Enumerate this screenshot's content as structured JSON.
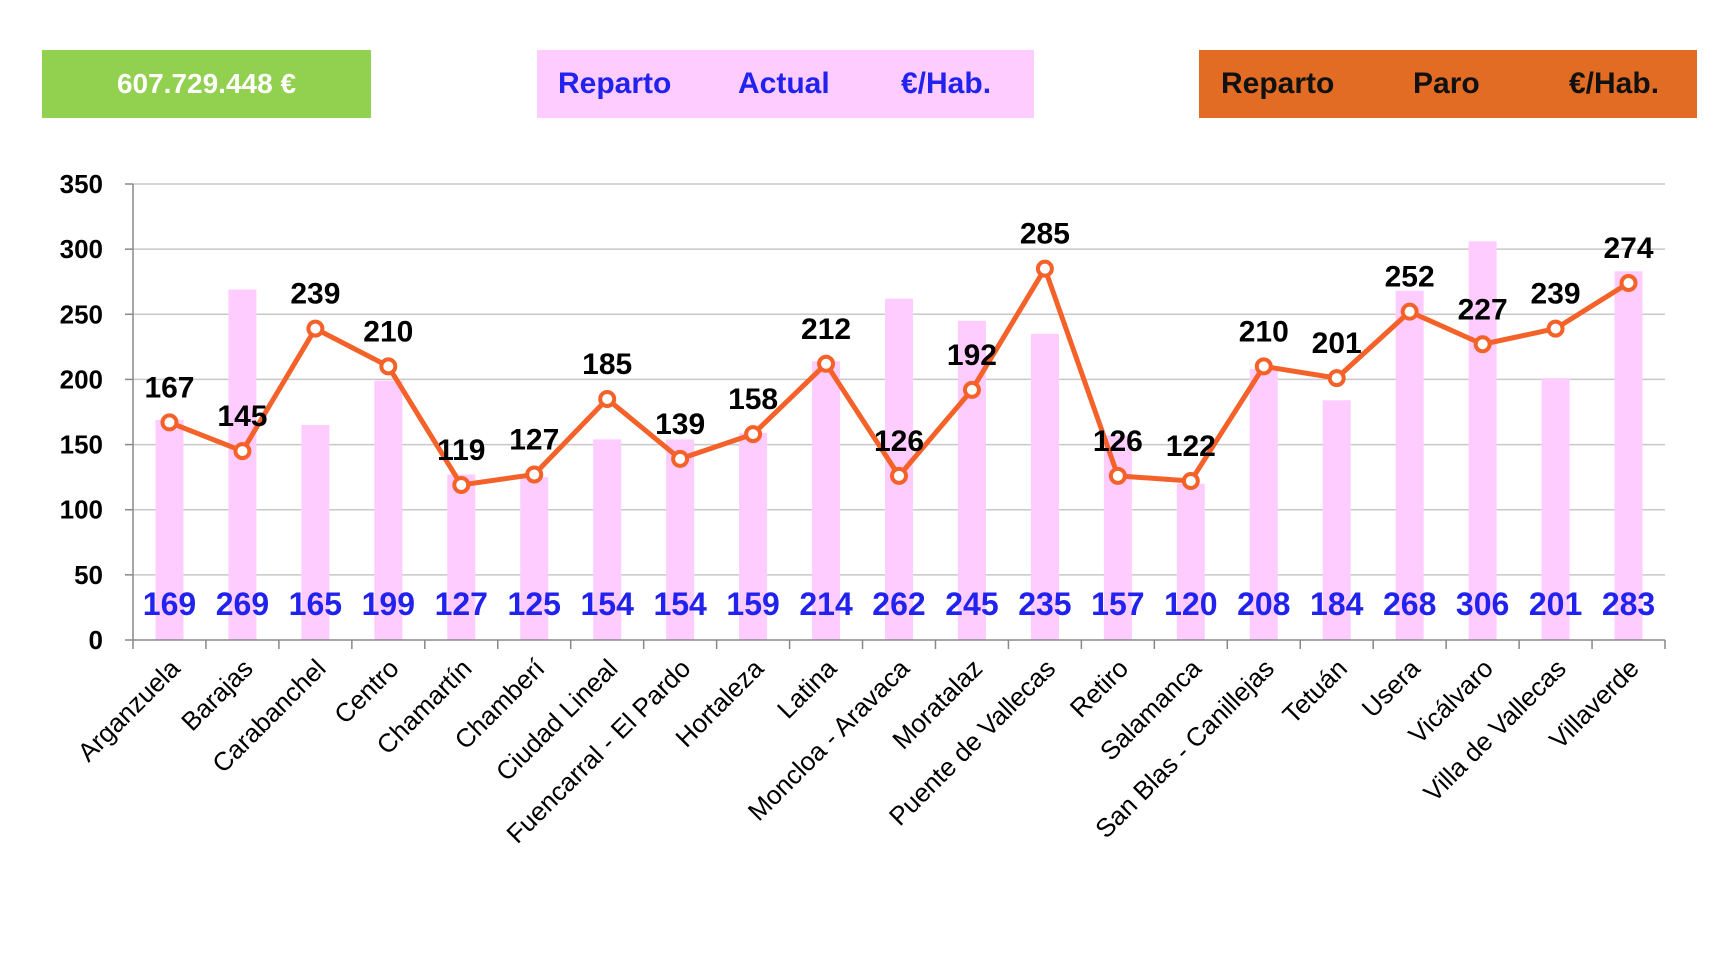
{
  "header": {
    "total": "607.729.448 €",
    "actual_box": [
      "Reparto",
      "Actual",
      "€/Hab."
    ],
    "paro_box": [
      "Reparto",
      "Paro",
      "€/Hab."
    ]
  },
  "colors": {
    "total_box": "#92d050",
    "actual_box": "#ffccff",
    "paro_box": "#e36c25",
    "bar": "#ffccff",
    "line": "#f4622a",
    "bar_label": "#2222ee"
  },
  "chart_data": {
    "type": "bar",
    "categories": [
      "Arganzuela",
      "Barajas",
      "Carabanchel",
      "Centro",
      "Chamartín",
      "Chamberí",
      "Ciudad Lineal",
      "Fuencarral - El Pardo",
      "Hortaleza",
      "Latina",
      "Moncloa - Aravaca",
      "Moratalaz",
      "Puente de Vallecas",
      "Retiro",
      "Salamanca",
      "San Blas - Canillejas",
      "Tetuán",
      "Usera",
      "Vicálvaro",
      "Villa de Vallecas",
      "Villaverde"
    ],
    "series": [
      {
        "type": "bar",
        "values": [
          169,
          269,
          165,
          199,
          127,
          125,
          154,
          154,
          159,
          214,
          262,
          245,
          235,
          157,
          120,
          208,
          184,
          268,
          306,
          201,
          283
        ]
      },
      {
        "type": "line",
        "values": [
          167,
          145,
          239,
          210,
          119,
          127,
          185,
          139,
          158,
          212,
          126,
          192,
          285,
          126,
          122,
          210,
          201,
          252,
          227,
          239,
          274
        ]
      }
    ],
    "ylim": [
      0,
      350
    ],
    "yticks": [
      0,
      50,
      100,
      150,
      200,
      250,
      300,
      350
    ],
    "grid": true,
    "legend": "none"
  }
}
